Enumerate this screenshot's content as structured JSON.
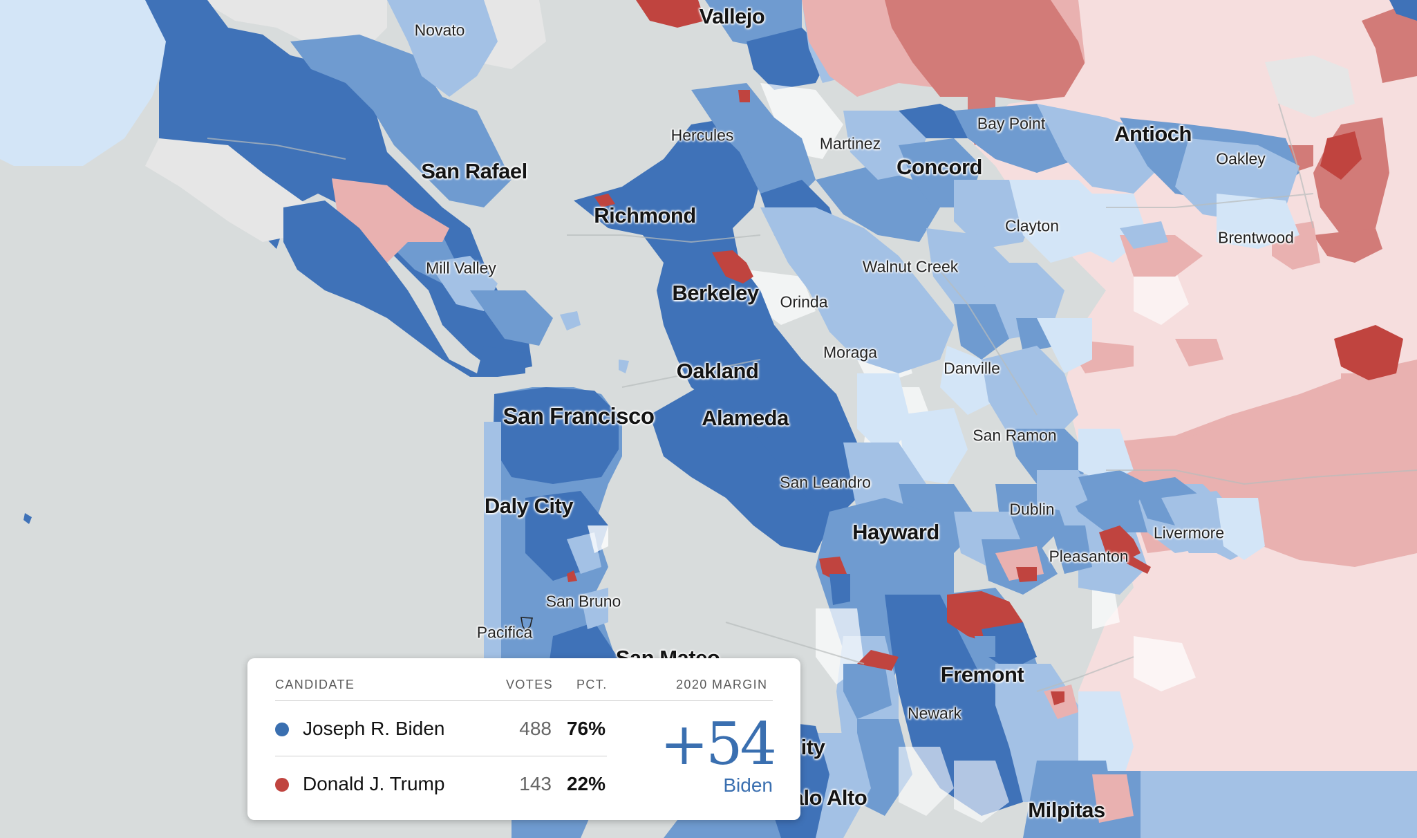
{
  "colors": {
    "water": "#d8dcdc",
    "land_gray": "#e6e6e6",
    "dem_strong": "#3f72b8",
    "dem_medium": "#6f9bd0",
    "dem_light": "#a3c1e5",
    "dem_pale": "#d3e5f7",
    "rep_strong": "#c0443f",
    "rep_medium": "#d27b78",
    "rep_light": "#e9b1b0",
    "rep_pale": "#f6dede",
    "biden": "#3a6fb0",
    "trump": "#c0443f"
  },
  "map_labels": [
    {
      "id": "vallejo",
      "text": "Vallejo",
      "size": "mid"
    },
    {
      "id": "novato",
      "text": "Novato",
      "size": "minor"
    },
    {
      "id": "san-rafael",
      "text": "San Rafael",
      "size": "mid"
    },
    {
      "id": "mill-valley",
      "text": "Mill Valley",
      "size": "minor"
    },
    {
      "id": "hercules",
      "text": "Hercules",
      "size": "minor"
    },
    {
      "id": "martinez",
      "text": "Martinez",
      "size": "minor"
    },
    {
      "id": "concord",
      "text": "Concord",
      "size": "mid"
    },
    {
      "id": "bay-point",
      "text": "Bay Point",
      "size": "minor"
    },
    {
      "id": "antioch",
      "text": "Antioch",
      "size": "mid"
    },
    {
      "id": "oakley",
      "text": "Oakley",
      "size": "minor"
    },
    {
      "id": "brentwood",
      "text": "Brentwood",
      "size": "minor"
    },
    {
      "id": "clayton",
      "text": "Clayton",
      "size": "minor"
    },
    {
      "id": "richmond",
      "text": "Richmond",
      "size": "mid"
    },
    {
      "id": "walnut-creek",
      "text": "Walnut Creek",
      "size": "minor"
    },
    {
      "id": "berkeley",
      "text": "Berkeley",
      "size": "mid"
    },
    {
      "id": "orinda",
      "text": "Orinda",
      "size": "minor"
    },
    {
      "id": "moraga",
      "text": "Moraga",
      "size": "minor"
    },
    {
      "id": "danville",
      "text": "Danville",
      "size": "minor"
    },
    {
      "id": "oakland",
      "text": "Oakland",
      "size": "mid"
    },
    {
      "id": "san-francisco",
      "text": "San Francisco",
      "size": "major"
    },
    {
      "id": "alameda",
      "text": "Alameda",
      "size": "mid"
    },
    {
      "id": "san-ramon",
      "text": "San Ramon",
      "size": "minor"
    },
    {
      "id": "san-leandro",
      "text": "San Leandro",
      "size": "minor"
    },
    {
      "id": "daly-city",
      "text": "Daly City",
      "size": "mid"
    },
    {
      "id": "dublin",
      "text": "Dublin",
      "size": "minor"
    },
    {
      "id": "hayward",
      "text": "Hayward",
      "size": "mid"
    },
    {
      "id": "livermore",
      "text": "Livermore",
      "size": "minor"
    },
    {
      "id": "pleasanton",
      "text": "Pleasanton",
      "size": "minor"
    },
    {
      "id": "san-bruno",
      "text": "San Bruno",
      "size": "minor"
    },
    {
      "id": "pacifica",
      "text": "Pacifica",
      "size": "minor"
    },
    {
      "id": "san-mateo",
      "text": "San Mateo",
      "size": "mid"
    },
    {
      "id": "fremont",
      "text": "Fremont",
      "size": "mid"
    },
    {
      "id": "newark",
      "text": "Newark",
      "size": "minor"
    },
    {
      "id": "city-fragment",
      "text": "ity",
      "size": "mid"
    },
    {
      "id": "palo-alto-fragment",
      "text": "alo Alto",
      "size": "mid"
    },
    {
      "id": "milpitas",
      "text": "Milpitas",
      "size": "mid"
    }
  ],
  "results": {
    "headers": {
      "candidate": "CANDIDATE",
      "votes": "VOTES",
      "pct": "PCT.",
      "margin": "2020 MARGIN"
    },
    "candidates": [
      {
        "name": "Joseph R. Biden",
        "votes": "488",
        "pct": "76%",
        "party": "biden"
      },
      {
        "name": "Donald J. Trump",
        "votes": "143",
        "pct": "22%",
        "party": "trump"
      }
    ],
    "margin": {
      "value": "+54",
      "winner": "Biden"
    }
  }
}
